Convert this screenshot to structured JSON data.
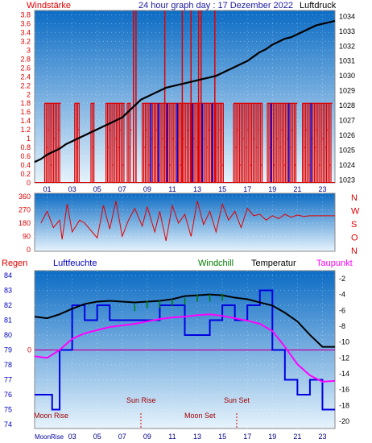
{
  "colors": {
    "panel_top": "#0c6cc4",
    "panel_bottom": "#e6f3fc",
    "wind": "#e00000",
    "pressure": "#000000",
    "direction": "#e00000",
    "humidity": "#0000e0",
    "windchill": "#008000",
    "temperature": "#000000",
    "dewpoint": "#ff00ff",
    "rain": "#e00000",
    "pink_line": "#c000a0",
    "title": "#1a1aa0"
  },
  "header": {
    "left_label": "Windstärke",
    "title": "24 hour graph day : 17 Dezember 2022",
    "right_label": "Luftdruck"
  },
  "direction_labels": [
    "N",
    "W",
    "S",
    "O",
    "N"
  ],
  "bottom_legend": {
    "regen": "Regen",
    "luftfeuchte": "Luftfeuchte",
    "windchill": "Windchill",
    "temperatur": "Temperatur",
    "taupunkt": "Taupunkt"
  },
  "annotations": {
    "moon_rise": "Moon Rise",
    "sun_rise": "Sun Rise",
    "moon_set": "Moon Set",
    "sun_set": "Sun Set",
    "bottom_moon_rise": "MoonRise"
  },
  "chart_data": [
    {
      "type": "line",
      "panel": "wind_pressure",
      "x_ticks": [
        "01",
        "03",
        "05",
        "07",
        "09",
        "11",
        "13",
        "15",
        "17",
        "19",
        "21",
        "23"
      ],
      "xlim": [
        0,
        24
      ],
      "y_left_ticks": [
        "0",
        "0.2",
        "0.4",
        "0.6",
        "0.8",
        "1",
        "1.2",
        "1.4",
        "1.6",
        "1.8",
        "2",
        "2.2",
        "2.4",
        "2.6",
        "2.8",
        "3",
        "3.2",
        "3.4",
        "3.6",
        "3.8"
      ],
      "y_left_lim": [
        0,
        3.9
      ],
      "y_right_ticks": [
        "1023",
        "1024",
        "1025",
        "1026",
        "1027",
        "1028",
        "1029",
        "1030",
        "1031",
        "1032",
        "1033",
        "1034"
      ],
      "y_right_lim": [
        1022.8,
        1034.4
      ],
      "pressure": [
        [
          0,
          1024.2
        ],
        [
          0.5,
          1024.4
        ],
        [
          1,
          1024.7
        ],
        [
          1.5,
          1024.9
        ],
        [
          2,
          1025.1
        ],
        [
          2.5,
          1025.4
        ],
        [
          3,
          1025.6
        ],
        [
          3.5,
          1025.8
        ],
        [
          4,
          1026
        ],
        [
          4.5,
          1026.2
        ],
        [
          5,
          1026.4
        ],
        [
          5.5,
          1026.6
        ],
        [
          6,
          1026.8
        ],
        [
          6.5,
          1027
        ],
        [
          7,
          1027.2
        ],
        [
          7.5,
          1027.6
        ],
        [
          8,
          1028
        ],
        [
          8.5,
          1028.4
        ],
        [
          9,
          1028.6
        ],
        [
          9.5,
          1028.8
        ],
        [
          10,
          1029
        ],
        [
          10.5,
          1029.2
        ],
        [
          11,
          1029.3
        ],
        [
          11.5,
          1029.4
        ],
        [
          12,
          1029.5
        ],
        [
          12.5,
          1029.6
        ],
        [
          13,
          1029.7
        ],
        [
          13.5,
          1029.8
        ],
        [
          14,
          1029.9
        ],
        [
          14.5,
          1030
        ],
        [
          15,
          1030.2
        ],
        [
          15.5,
          1030.4
        ],
        [
          16,
          1030.6
        ],
        [
          16.5,
          1030.8
        ],
        [
          17,
          1031
        ],
        [
          17.5,
          1031.3
        ],
        [
          18,
          1031.6
        ],
        [
          18.5,
          1031.8
        ],
        [
          19,
          1032.1
        ],
        [
          19.5,
          1032.3
        ],
        [
          20,
          1032.5
        ],
        [
          20.5,
          1032.6
        ],
        [
          21,
          1032.8
        ],
        [
          21.5,
          1033
        ],
        [
          22,
          1033.2
        ],
        [
          22.5,
          1033.4
        ],
        [
          23,
          1033.5
        ],
        [
          23.5,
          1033.6
        ],
        [
          24,
          1033.7
        ]
      ],
      "wind_red_segments": [
        [
          0.8,
          2.1
        ],
        [
          3.2,
          3.6
        ],
        [
          4.5,
          4.8
        ],
        [
          5.7,
          7.2
        ],
        [
          7.4,
          7.7
        ],
        [
          8.6,
          15.1
        ],
        [
          15.9,
          18.2
        ],
        [
          18.6,
          21
        ],
        [
          21.4,
          23.8
        ]
      ],
      "wind_gusts": [
        [
          7.9,
          3.9
        ],
        [
          8.1,
          3.9
        ],
        [
          10.4,
          3.9
        ],
        [
          11.8,
          3.9
        ],
        [
          12.5,
          3.9
        ],
        [
          13.1,
          3.9
        ],
        [
          13.3,
          3.9
        ],
        [
          14.4,
          3.9
        ]
      ],
      "wind_blue_marks": [
        [
          9.3,
          1.8
        ],
        [
          9.9,
          1.8
        ],
        [
          10.6,
          1.8
        ],
        [
          11.4,
          1.8
        ],
        [
          12.6,
          1.8
        ],
        [
          13.4,
          1.8
        ],
        [
          14.2,
          1.8
        ],
        [
          18.9,
          1.8
        ],
        [
          20.3,
          1.8
        ],
        [
          22.1,
          1.8
        ]
      ]
    },
    {
      "type": "line",
      "panel": "wind_direction",
      "y_ticks": [
        "0",
        "90",
        "180",
        "270",
        "360"
      ],
      "y_lim": [
        0,
        360
      ],
      "direction": [
        [
          0.5,
          180
        ],
        [
          1,
          260
        ],
        [
          1.5,
          150
        ],
        [
          2,
          200
        ],
        [
          2.2,
          70
        ],
        [
          2.6,
          310
        ],
        [
          3,
          120
        ],
        [
          3.6,
          200
        ],
        [
          4,
          180
        ],
        [
          5,
          80
        ],
        [
          5.5,
          300
        ],
        [
          6,
          140
        ],
        [
          6.5,
          330
        ],
        [
          7,
          90
        ],
        [
          7.5,
          200
        ],
        [
          8,
          280
        ],
        [
          8.6,
          160
        ],
        [
          9,
          290
        ],
        [
          9.6,
          120
        ],
        [
          10,
          260
        ],
        [
          10.5,
          60
        ],
        [
          11,
          300
        ],
        [
          11.5,
          180
        ],
        [
          12,
          240
        ],
        [
          12.5,
          90
        ],
        [
          13,
          330
        ],
        [
          13.5,
          170
        ],
        [
          14,
          260
        ],
        [
          14.5,
          120
        ],
        [
          15,
          310
        ],
        [
          15.5,
          200
        ],
        [
          16,
          260
        ],
        [
          16.5,
          150
        ],
        [
          17,
          280
        ],
        [
          17.5,
          230
        ],
        [
          18,
          240
        ],
        [
          18.5,
          200
        ],
        [
          19,
          230
        ],
        [
          19.5,
          210
        ],
        [
          20,
          240
        ],
        [
          20.5,
          220
        ],
        [
          21,
          235
        ],
        [
          21.5,
          225
        ],
        [
          22,
          230
        ],
        [
          24,
          230
        ]
      ]
    },
    {
      "type": "line",
      "panel": "temperature_humidity",
      "y_left_ticks": [
        "74",
        "75",
        "76",
        "77",
        "78",
        "79",
        "80",
        "81",
        "82",
        "83",
        "84"
      ],
      "y_left_lim": [
        74,
        84
      ],
      "y_right_ticks": [
        "-2",
        "-4",
        "-6",
        "-8",
        "-10",
        "-12",
        "-14",
        "-16",
        "-18",
        "-20"
      ],
      "y_right_lim": [
        -20.4,
        -1.6
      ],
      "rain_zero_tick": "0",
      "temperature": [
        [
          0,
          -6.8
        ],
        [
          1,
          -7
        ],
        [
          2,
          -6.5
        ],
        [
          3,
          -5.8
        ],
        [
          4,
          -5.2
        ],
        [
          5,
          -4.9
        ],
        [
          6,
          -4.8
        ],
        [
          7,
          -4.9
        ],
        [
          8,
          -5
        ],
        [
          9,
          -4.9
        ],
        [
          10,
          -4.8
        ],
        [
          11,
          -4.6
        ],
        [
          12,
          -4.2
        ],
        [
          13,
          -4.1
        ],
        [
          14,
          -4
        ],
        [
          15,
          -4.1
        ],
        [
          16,
          -4.4
        ],
        [
          17,
          -4.6
        ],
        [
          17.5,
          -4.8
        ],
        [
          18,
          -5
        ],
        [
          19,
          -5.4
        ],
        [
          20,
          -6.3
        ],
        [
          21,
          -7.4
        ],
        [
          22,
          -9.1
        ],
        [
          23,
          -10.6
        ],
        [
          24,
          -10.6
        ]
      ],
      "dewpoint": [
        [
          0,
          -11.8
        ],
        [
          1,
          -12
        ],
        [
          2,
          -11
        ],
        [
          3,
          -9.6
        ],
        [
          4,
          -8.9
        ],
        [
          5,
          -8.5
        ],
        [
          6,
          -8.1
        ],
        [
          7,
          -7.9
        ],
        [
          8,
          -7.7
        ],
        [
          9,
          -7.4
        ],
        [
          10,
          -7.1
        ],
        [
          11,
          -6.9
        ],
        [
          12,
          -6.8
        ],
        [
          13,
          -6.6
        ],
        [
          14,
          -6.5
        ],
        [
          15,
          -6.7
        ],
        [
          16,
          -7
        ],
        [
          17,
          -7.3
        ],
        [
          18,
          -7.7
        ],
        [
          19,
          -8.6
        ],
        [
          20,
          -10.6
        ],
        [
          21,
          -12.8
        ],
        [
          22,
          -14.2
        ],
        [
          23,
          -15
        ],
        [
          24,
          -14.9
        ]
      ],
      "windchill": [
        [
          8,
          -5.4
        ],
        [
          9,
          -5
        ],
        [
          10,
          -5
        ],
        [
          11,
          -4.8
        ],
        [
          12,
          -4.6
        ],
        [
          13,
          -4.2
        ],
        [
          14,
          -4.2
        ],
        [
          15,
          -4.1
        ]
      ],
      "humidity": [
        [
          0,
          76
        ],
        [
          1.4,
          76
        ],
        [
          1.4,
          75
        ],
        [
          2,
          75
        ],
        [
          2,
          79
        ],
        [
          3,
          79
        ],
        [
          3,
          82
        ],
        [
          4,
          82
        ],
        [
          4,
          81
        ],
        [
          5,
          81
        ],
        [
          5,
          82
        ],
        [
          6,
          82
        ],
        [
          6,
          81
        ],
        [
          8,
          81
        ],
        [
          8,
          81
        ],
        [
          10,
          81
        ],
        [
          10,
          82
        ],
        [
          12,
          82
        ],
        [
          12,
          80
        ],
        [
          14,
          80
        ],
        [
          14,
          81
        ],
        [
          15,
          81
        ],
        [
          15,
          82
        ],
        [
          16,
          82
        ],
        [
          16,
          81
        ],
        [
          17,
          81
        ],
        [
          17,
          82
        ],
        [
          18,
          82
        ],
        [
          18,
          83
        ],
        [
          19,
          83
        ],
        [
          19,
          79
        ],
        [
          20,
          79
        ],
        [
          20,
          77
        ],
        [
          21,
          77
        ],
        [
          21,
          76
        ],
        [
          22,
          76
        ],
        [
          22,
          77
        ],
        [
          23,
          77
        ],
        [
          23,
          75
        ],
        [
          24,
          75
        ]
      ]
    }
  ]
}
